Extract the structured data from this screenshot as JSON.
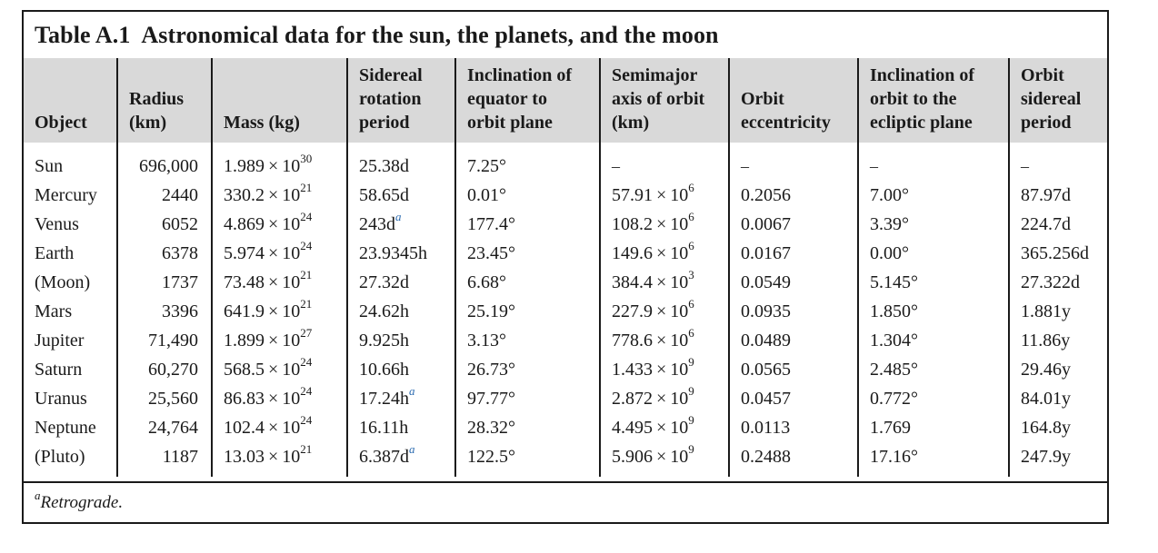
{
  "table": {
    "number": "Table A.1",
    "title": "Astronomical data for the sun, the planets, and the moon",
    "headers": [
      [
        "Object"
      ],
      [
        "Radius",
        "(km)"
      ],
      [
        "Mass (kg)"
      ],
      [
        "Sidereal",
        "rotation",
        "period"
      ],
      [
        "Inclination of",
        "equator to",
        "orbit plane"
      ],
      [
        "Semimajor",
        "axis of orbit",
        "(km)"
      ],
      [
        "Orbit",
        "eccentricity"
      ],
      [
        "Inclination of",
        "orbit to the",
        "ecliptic plane"
      ],
      [
        "Orbit",
        "sidereal",
        "period"
      ]
    ],
    "times_symbol": "×",
    "rows": [
      {
        "object": "Sun",
        "radius": "696,000",
        "mass_mantissa": "1.989",
        "mass_exp": "30",
        "rotation": "25.38d",
        "rotation_note": "",
        "inclination_equator": "7.25°",
        "axis_mantissa": "",
        "axis_exp": "",
        "axis_text": "–",
        "eccentricity": "–",
        "inclination_ecliptic": "–",
        "orbit_period": "–"
      },
      {
        "object": "Mercury",
        "radius": "2440",
        "mass_mantissa": "330.2",
        "mass_exp": "21",
        "rotation": "58.65d",
        "rotation_note": "",
        "inclination_equator": "0.01°",
        "axis_mantissa": "57.91",
        "axis_exp": "6",
        "axis_text": "",
        "eccentricity": "0.2056",
        "inclination_ecliptic": "7.00°",
        "orbit_period": "87.97d"
      },
      {
        "object": "Venus",
        "radius": "6052",
        "mass_mantissa": "4.869",
        "mass_exp": "24",
        "rotation": "243d",
        "rotation_note": "a",
        "inclination_equator": "177.4°",
        "axis_mantissa": "108.2",
        "axis_exp": "6",
        "axis_text": "",
        "eccentricity": "0.0067",
        "inclination_ecliptic": "3.39°",
        "orbit_period": "224.7d"
      },
      {
        "object": "Earth",
        "radius": "6378",
        "mass_mantissa": "5.974",
        "mass_exp": "24",
        "rotation": "23.9345h",
        "rotation_note": "",
        "inclination_equator": "23.45°",
        "axis_mantissa": "149.6",
        "axis_exp": "6",
        "axis_text": "",
        "eccentricity": "0.0167",
        "inclination_ecliptic": "0.00°",
        "orbit_period": "365.256d"
      },
      {
        "object": "(Moon)",
        "radius": "1737",
        "mass_mantissa": "73.48",
        "mass_exp": "21",
        "rotation": "27.32d",
        "rotation_note": "",
        "inclination_equator": "6.68°",
        "axis_mantissa": "384.4",
        "axis_exp": "3",
        "axis_text": "",
        "eccentricity": "0.0549",
        "inclination_ecliptic": "5.145°",
        "orbit_period": "27.322d"
      },
      {
        "object": "Mars",
        "radius": "3396",
        "mass_mantissa": "641.9",
        "mass_exp": "21",
        "rotation": "24.62h",
        "rotation_note": "",
        "inclination_equator": "25.19°",
        "axis_mantissa": "227.9",
        "axis_exp": "6",
        "axis_text": "",
        "eccentricity": "0.0935",
        "inclination_ecliptic": "1.850°",
        "orbit_period": "1.881y"
      },
      {
        "object": "Jupiter",
        "radius": "71,490",
        "mass_mantissa": "1.899",
        "mass_exp": "27",
        "rotation": "9.925h",
        "rotation_note": "",
        "inclination_equator": "3.13°",
        "axis_mantissa": "778.6",
        "axis_exp": "6",
        "axis_text": "",
        "eccentricity": "0.0489",
        "inclination_ecliptic": "1.304°",
        "orbit_period": "11.86y"
      },
      {
        "object": "Saturn",
        "radius": "60,270",
        "mass_mantissa": "568.5",
        "mass_exp": "24",
        "rotation": "10.66h",
        "rotation_note": "",
        "inclination_equator": "26.73°",
        "axis_mantissa": "1.433",
        "axis_exp": "9",
        "axis_text": "",
        "eccentricity": "0.0565",
        "inclination_ecliptic": "2.485°",
        "orbit_period": "29.46y"
      },
      {
        "object": "Uranus",
        "radius": "25,560",
        "mass_mantissa": "86.83",
        "mass_exp": "24",
        "rotation": "17.24h",
        "rotation_note": "a",
        "inclination_equator": "97.77°",
        "axis_mantissa": "2.872",
        "axis_exp": "9",
        "axis_text": "",
        "eccentricity": "0.0457",
        "inclination_ecliptic": "0.772°",
        "orbit_period": "84.01y"
      },
      {
        "object": "Neptune",
        "radius": "24,764",
        "mass_mantissa": "102.4",
        "mass_exp": "24",
        "rotation": "16.11h",
        "rotation_note": "",
        "inclination_equator": "28.32°",
        "axis_mantissa": "4.495",
        "axis_exp": "9",
        "axis_text": "",
        "eccentricity": "0.0113",
        "inclination_ecliptic": "1.769",
        "orbit_period": "164.8y"
      },
      {
        "object": "(Pluto)",
        "radius": "1187",
        "mass_mantissa": "13.03",
        "mass_exp": "21",
        "rotation": "6.387d",
        "rotation_note": "a",
        "inclination_equator": "122.5°",
        "axis_mantissa": "5.906",
        "axis_exp": "9",
        "axis_text": "",
        "eccentricity": "0.2488",
        "inclination_ecliptic": "17.16°",
        "orbit_period": "247.9y"
      }
    ],
    "footnote_mark": "a",
    "footnote_text": "Retrograde."
  },
  "colors": {
    "header_bg": "#d9d9d9",
    "text": "#1a1a1a",
    "footnote_mark": "#2a6ab0"
  }
}
